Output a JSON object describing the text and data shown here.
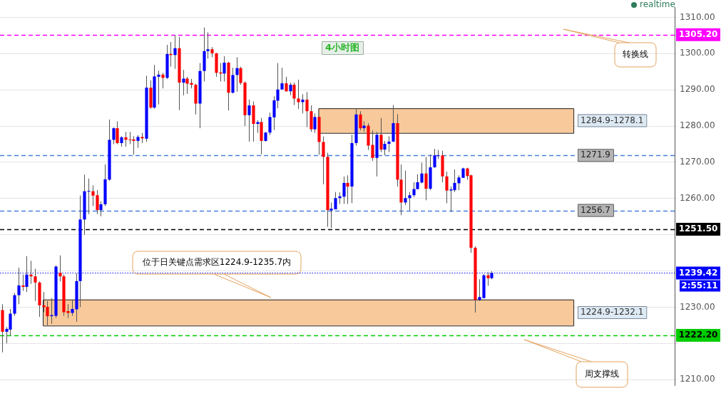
{
  "chart_data": {
    "type": "candlestick",
    "title": "4小时图",
    "categories": [
      null,
      null,
      null,
      null,
      null,
      null,
      null,
      null,
      null,
      null,
      null,
      null,
      null,
      null,
      null,
      null,
      null,
      null,
      null,
      null,
      null,
      null,
      null,
      null,
      null,
      null,
      null,
      null,
      null,
      null,
      null,
      null,
      null,
      null,
      null,
      null,
      null,
      null,
      null,
      null,
      null,
      null,
      null,
      null,
      null,
      null,
      null,
      null,
      null,
      null,
      null,
      null,
      null,
      null,
      null,
      null,
      null,
      null,
      null,
      null,
      null,
      null,
      null,
      null,
      null,
      null,
      null,
      null,
      null,
      null,
      null,
      null,
      null,
      null,
      null,
      null,
      null,
      null,
      null,
      null,
      null,
      null,
      null,
      null,
      null,
      null,
      null,
      null,
      null,
      null,
      null,
      null,
      null,
      null,
      null,
      null,
      null,
      null,
      null,
      null,
      null,
      null,
      null,
      null,
      null,
      null,
      null,
      null,
      null,
      null,
      null,
      null,
      null,
      null,
      null,
      null,
      null,
      null,
      null,
      null,
      null,
      null,
      null,
      null,
      null,
      null,
      null,
      null,
      null,
      null,
      null,
      null,
      null,
      null,
      null,
      null,
      null,
      null,
      null,
      null,
      null,
      null,
      null,
      null,
      null,
      null,
      null,
      null,
      null,
      null,
      null,
      null,
      null,
      null,
      null,
      null,
      null,
      null,
      null,
      null,
      null,
      null,
      null,
      null
    ],
    "ohlc": [
      [
        1229.2,
        1230.8,
        1217.5,
        1223.2
      ],
      [
        1223.2,
        1224.5,
        1220.0,
        1224.0
      ],
      [
        1223.8,
        1229.5,
        1222.2,
        1228.2
      ],
      [
        1228.2,
        1233.9,
        1227.6,
        1233.3
      ],
      [
        1233.3,
        1240.9,
        1230.8,
        1236.0
      ],
      [
        1236.0,
        1239.0,
        1234.5,
        1235.6
      ],
      [
        1235.6,
        1244.1,
        1234.2,
        1239.0
      ],
      [
        1239.0,
        1242.8,
        1236.4,
        1238.5
      ],
      [
        1238.5,
        1240.6,
        1231.7,
        1236.8
      ],
      [
        1236.8,
        1237.1,
        1227.3,
        1230.5
      ],
      [
        1230.5,
        1234.2,
        1228.6,
        1230.0
      ],
      [
        1230.1,
        1231.7,
        1225.0,
        1227.5
      ],
      [
        1227.5,
        1232.5,
        1225.4,
        1227.8
      ],
      [
        1227.6,
        1241.5,
        1227.0,
        1241.2
      ],
      [
        1239.5,
        1244.3,
        1237.1,
        1238.5
      ],
      [
        1238.5,
        1239.0,
        1227.6,
        1228.6
      ],
      [
        1228.9,
        1230.8,
        1227.0,
        1228.4
      ],
      [
        1228.4,
        1232.0,
        1227.6,
        1229.5
      ],
      [
        1229.4,
        1239.3,
        1226.0,
        1237.2
      ],
      [
        1237.2,
        1260.8,
        1230.0,
        1254.2
      ],
      [
        1254.2,
        1266.6,
        1250.0,
        1262.0
      ],
      [
        1262.0,
        1265.5,
        1255.7,
        1262.1
      ],
      [
        1262.0,
        1263.6,
        1257.9,
        1260.8
      ],
      [
        1260.9,
        1262.3,
        1255.7,
        1256.8
      ],
      [
        1256.8,
        1259.2,
        1255.1,
        1258.4
      ],
      [
        1258.4,
        1269.4,
        1257.9,
        1265.3
      ],
      [
        1265.2,
        1281.8,
        1264.9,
        1276.2
      ],
      [
        1276.2,
        1279.6,
        1275.0,
        1279.4
      ],
      [
        1279.4,
        1281.3,
        1275.0,
        1275.3
      ],
      [
        1275.3,
        1277.2,
        1274.3,
        1276.9
      ],
      [
        1276.9,
        1278.4,
        1274.3,
        1276.2
      ],
      [
        1276.3,
        1278.4,
        1275.0,
        1276.2
      ],
      [
        1276.3,
        1277.2,
        1272.1,
        1275.9
      ],
      [
        1275.9,
        1277.5,
        1274.0,
        1277.0
      ],
      [
        1277.0,
        1278.1,
        1275.3,
        1276.6
      ],
      [
        1276.5,
        1293.9,
        1275.6,
        1290.6
      ],
      [
        1290.6,
        1292.6,
        1284.8,
        1285.1
      ],
      [
        1285.1,
        1296.9,
        1284.8,
        1293.7
      ],
      [
        1293.6,
        1295.3,
        1286.0,
        1294.2
      ],
      [
        1294.2,
        1294.7,
        1290.4,
        1293.3
      ],
      [
        1293.3,
        1302.4,
        1293.0,
        1299.9
      ],
      [
        1299.9,
        1303.2,
        1296.4,
        1299.6
      ],
      [
        1299.6,
        1305.1,
        1295.8,
        1301.5
      ],
      [
        1301.5,
        1304.6,
        1284.4,
        1292.0
      ],
      [
        1292.0,
        1295.5,
        1288.5,
        1293.1
      ],
      [
        1293.1,
        1293.6,
        1288.9,
        1291.7
      ],
      [
        1291.9,
        1293.0,
        1290.4,
        1291.4
      ],
      [
        1291.4,
        1291.7,
        1283.2,
        1286.2
      ],
      [
        1286.2,
        1297.4,
        1279.4,
        1295.2
      ],
      [
        1295.2,
        1307.2,
        1292.3,
        1300.7
      ],
      [
        1300.7,
        1305.9,
        1298.6,
        1301.2
      ],
      [
        1301.2,
        1301.8,
        1299.0,
        1300.1
      ],
      [
        1300.1,
        1300.2,
        1293.6,
        1294.7
      ],
      [
        1294.8,
        1297.4,
        1292.3,
        1294.5
      ],
      [
        1294.5,
        1299.3,
        1292.3,
        1297.5
      ],
      [
        1297.5,
        1297.7,
        1284.3,
        1289.2
      ],
      [
        1289.2,
        1296.1,
        1289.0,
        1294.1
      ],
      [
        1294.1,
        1299.0,
        1289.5,
        1296.0
      ],
      [
        1296.0,
        1296.4,
        1291.4,
        1291.9
      ],
      [
        1292.0,
        1292.3,
        1280.0,
        1283.0
      ],
      [
        1283.0,
        1287.3,
        1275.7,
        1285.7
      ],
      [
        1285.7,
        1286.8,
        1275.7,
        1280.6
      ],
      [
        1280.6,
        1281.6,
        1278.1,
        1281.1
      ],
      [
        1281.1,
        1282.2,
        1272.2,
        1275.9
      ],
      [
        1275.9,
        1278.4,
        1275.7,
        1278.2
      ],
      [
        1278.2,
        1283.7,
        1277.5,
        1282.5
      ],
      [
        1282.4,
        1288.2,
        1278.9,
        1287.1
      ],
      [
        1287.0,
        1297.4,
        1284.9,
        1290.1
      ],
      [
        1290.1,
        1296.1,
        1290.1,
        1291.8
      ],
      [
        1291.8,
        1293.6,
        1289.5,
        1289.6
      ],
      [
        1289.6,
        1292.0,
        1288.5,
        1291.4
      ],
      [
        1291.4,
        1292.0,
        1285.8,
        1287.6
      ],
      [
        1287.6,
        1292.8,
        1284.7,
        1286.6
      ],
      [
        1286.6,
        1288.8,
        1283.5,
        1287.3
      ],
      [
        1287.3,
        1289.4,
        1279.7,
        1284.1
      ],
      [
        1284.1,
        1285.7,
        1278.4,
        1279.1
      ],
      [
        1279.1,
        1283.5,
        1278.1,
        1282.5
      ],
      [
        1282.5,
        1282.7,
        1272.1,
        1275.6
      ],
      [
        1275.6,
        1277.1,
        1263.9,
        1271.5
      ],
      [
        1271.5,
        1272.6,
        1252.2,
        1256.8
      ],
      [
        1256.7,
        1258.9,
        1251.9,
        1257.2
      ],
      [
        1257.0,
        1261.8,
        1257.0,
        1260.1
      ],
      [
        1260.1,
        1261.7,
        1258.5,
        1260.6
      ],
      [
        1260.5,
        1266.1,
        1258.5,
        1264.3
      ],
      [
        1264.3,
        1266.4,
        1258.5,
        1263.3
      ],
      [
        1263.3,
        1277.6,
        1258.7,
        1275.3
      ],
      [
        1275.3,
        1284.7,
        1274.6,
        1283.2
      ],
      [
        1283.2,
        1284.1,
        1278.8,
        1279.4
      ],
      [
        1279.4,
        1281.3,
        1278.4,
        1280.1
      ],
      [
        1280.1,
        1280.8,
        1273.4,
        1274.6
      ],
      [
        1274.8,
        1278.8,
        1270.4,
        1271.2
      ],
      [
        1271.2,
        1278.4,
        1266.1,
        1277.6
      ],
      [
        1277.6,
        1282.2,
        1272.8,
        1273.5
      ],
      [
        1273.5,
        1275.9,
        1271.9,
        1275.1
      ],
      [
        1275.1,
        1277.2,
        1272.8,
        1275.7
      ],
      [
        1275.7,
        1285.8,
        1275.6,
        1280.8
      ],
      [
        1280.8,
        1283.3,
        1263.3,
        1265.2
      ],
      [
        1265.2,
        1269.4,
        1255.4,
        1258.9
      ],
      [
        1258.9,
        1267.7,
        1258.2,
        1260.1
      ],
      [
        1260.1,
        1261.8,
        1256.7,
        1260.9
      ],
      [
        1260.9,
        1264.5,
        1260.4,
        1262.6
      ],
      [
        1262.6,
        1266.7,
        1262.5,
        1264.5
      ],
      [
        1264.4,
        1269.9,
        1264.2,
        1266.9
      ],
      [
        1266.9,
        1271.5,
        1259.5,
        1262.7
      ],
      [
        1262.7,
        1272.1,
        1262.3,
        1268.6
      ],
      [
        1268.6,
        1273.7,
        1268.5,
        1271.9
      ],
      [
        1271.7,
        1273.4,
        1270.9,
        1271.9
      ],
      [
        1271.9,
        1273.2,
        1264.5,
        1266.1
      ],
      [
        1266.1,
        1267.4,
        1258.7,
        1262.2
      ],
      [
        1262.2,
        1263.3,
        1256.3,
        1262.5
      ],
      [
        1262.3,
        1268.0,
        1261.8,
        1264.3
      ],
      [
        1264.2,
        1266.4,
        1262.3,
        1265.8
      ],
      [
        1265.7,
        1268.5,
        1265.7,
        1268.3
      ],
      [
        1268.3,
        1268.5,
        1265.2,
        1266.2
      ],
      [
        1266.4,
        1266.6,
        1245.0,
        1246.4
      ],
      [
        1246.4,
        1246.8,
        1228.5,
        1232.0
      ],
      [
        1232.0,
        1237.7,
        1231.7,
        1232.8
      ],
      [
        1232.5,
        1239.1,
        1232.5,
        1238.8
      ],
      [
        1238.8,
        1239.6,
        1235.9,
        1238.0
      ],
      [
        1238.0,
        1239.9,
        1237.7,
        1239.42
      ],
      null,
      null,
      null,
      null,
      null,
      null,
      null,
      null,
      null,
      null,
      null,
      null,
      null,
      null,
      null,
      null,
      null,
      null,
      null,
      null,
      null,
      null,
      null,
      null,
      null,
      null,
      null,
      null,
      null,
      null,
      null,
      null,
      null,
      null,
      null,
      null,
      null,
      null,
      null,
      null,
      null,
      null,
      null,
      null
    ],
    "colors": [
      "#ff0000",
      "#0000ff",
      "#0000ff",
      "#0000ff",
      "#0000ff",
      "#ff0000",
      "#0000ff",
      "#ff0000",
      "#ff0000",
      "#ff0000",
      "#ff0000",
      "#ff0000",
      "#0000ff",
      "#0000ff",
      "#ff0000",
      "#ff0000",
      "#ff0000",
      "#0000ff",
      "#0000ff",
      "#0000ff",
      "#0000ff",
      "#0000ff",
      "#ff0000",
      "#ff0000",
      "#0000ff",
      "#0000ff",
      "#0000ff",
      "#0000ff",
      "#ff0000",
      "#0000ff",
      "#ff0000",
      "#ff0000",
      "#ff0000",
      "#0000ff",
      "#ff0000",
      "#0000ff",
      "#ff0000",
      "#0000ff",
      "#0000ff",
      "#ff0000",
      "#0000ff",
      "#ff0000",
      "#0000ff",
      "#ff0000",
      "#0000ff",
      "#ff0000",
      "#ff0000",
      "#ff0000",
      "#0000ff",
      "#0000ff",
      "#0000ff",
      "#ff0000",
      "#ff0000",
      "#ff0000",
      "#0000ff",
      "#ff0000",
      "#0000ff",
      "#0000ff",
      "#ff0000",
      "#ff0000",
      "#0000ff",
      "#ff0000",
      "#0000ff",
      "#ff0000",
      "#0000ff",
      "#0000ff",
      "#0000ff",
      "#0000ff",
      "#0000ff",
      "#ff0000",
      "#0000ff",
      "#ff0000",
      "#ff0000",
      "#0000ff",
      "#ff0000",
      "#ff0000",
      "#0000ff",
      "#ff0000",
      "#ff0000",
      "#ff0000",
      "#0000ff",
      "#0000ff",
      "#0000ff",
      "#0000ff",
      "#ff0000",
      "#0000ff",
      "#0000ff",
      "#ff0000",
      "#0000ff",
      "#ff0000",
      "#ff0000",
      "#0000ff",
      "#ff0000",
      "#0000ff",
      "#0000ff",
      "#0000ff",
      "#ff0000",
      "#ff0000",
      "#0000ff",
      "#0000ff",
      "#0000ff",
      "#0000ff",
      "#0000ff",
      "#ff0000",
      "#0000ff",
      "#0000ff",
      "#0000ff",
      "#ff0000",
      "#ff0000",
      "#0000ff",
      "#0000ff",
      "#0000ff",
      "#0000ff",
      "#ff0000",
      "#ff0000",
      "#ff0000",
      "#0000ff",
      "#0000ff",
      "#ff0000",
      "#0000ff",
      null,
      null,
      null,
      null,
      null,
      null,
      null,
      null,
      null,
      null,
      null,
      null,
      null,
      null,
      null,
      null,
      null,
      null,
      null,
      null,
      null,
      null,
      null,
      null,
      null,
      null,
      null,
      null,
      null,
      null,
      null,
      null,
      null,
      null,
      null,
      null,
      null,
      null,
      null,
      null,
      null,
      null,
      null,
      null
    ],
    "ylim": [
      1208.3,
      1312.8
    ],
    "yticks": [
      {
        "value": 1210,
        "label": "1210.00"
      },
      {
        "value": 1220,
        "label": null
      },
      {
        "value": 1230,
        "label": "1230.00"
      },
      {
        "value": 1240,
        "label": null
      },
      {
        "value": 1250,
        "label": null
      },
      {
        "value": 1260,
        "label": "1260.00"
      },
      {
        "value": 1270,
        "label": "1270.00"
      },
      {
        "value": 1280,
        "label": "1280.00"
      },
      {
        "value": 1290,
        "label": "1290.00"
      },
      {
        "value": 1300,
        "label": "1300.00"
      },
      {
        "value": 1310,
        "label": "1310.00"
      }
    ],
    "tick_labels": "y",
    "grid": "y",
    "ref_lines": [
      {
        "axis": "y",
        "value": 1305.2,
        "label": "1305.20",
        "color": "#ff00ff",
        "line_style": "dashed"
      },
      {
        "axis": "y",
        "value": 1271.9,
        "label": "1271.9",
        "color": "#4a7fdc",
        "line_style": "dashed"
      },
      {
        "axis": "y",
        "value": 1256.7,
        "label": "1256.7",
        "color": "#4a7fdc",
        "line_style": "dashed"
      },
      {
        "axis": "y",
        "value": 1251.5,
        "label": "1251.50",
        "color": "#000000",
        "line_style": "dashed"
      },
      {
        "axis": "y",
        "value": 1239.42,
        "label": "1239.42",
        "color": "#0000ff",
        "line_style": "dotted"
      },
      {
        "axis": "y",
        "value": 1222.2,
        "label": "1222.20",
        "color": "#00cc00",
        "line_style": "dashed"
      }
    ],
    "bands": [
      {
        "axis": "y",
        "from": 1278.1,
        "to": 1284.9,
        "label": "1284.9-1278.1",
        "color": "#f8c99b"
      },
      {
        "axis": "y",
        "from": 1224.9,
        "to": 1232.1,
        "label": "1224.9-1232.1",
        "color": "#f8c99b"
      }
    ],
    "annotations": [
      "realtime",
      "2:55:11",
      "转换线",
      "位于日关键点需求区1224.9-1235.7内",
      "周支撑线"
    ]
  }
}
